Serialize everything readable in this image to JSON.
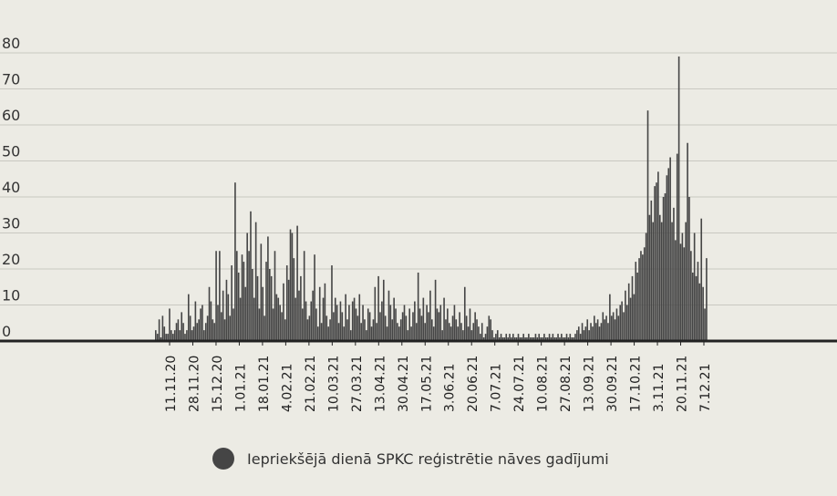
{
  "chart_data": {
    "type": "bar",
    "title": "",
    "xlabel": "",
    "ylabel": "",
    "ylim": [
      0,
      80
    ],
    "y_ticks": [
      0,
      10,
      20,
      30,
      40,
      50,
      60,
      70,
      80
    ],
    "x_tick_labels": [
      "11.11.20",
      "28.11.20",
      "15.12.20",
      "1.01.21",
      "18.01.21",
      "4.02.21",
      "21.02.21",
      "10.03.21",
      "27.03.21",
      "13.04.21",
      "30.04.21",
      "17.05.21",
      "3.06.21",
      "20.06.21",
      "7.07.21",
      "24.07.21",
      "10.08.21",
      "27.08.21",
      "13.09.21",
      "30.09.21",
      "17.10.21",
      "3.11.21",
      "20.11.21",
      "7.12.21"
    ],
    "grid": "horizontal",
    "legend_position": "bottom",
    "series": [
      {
        "name": "Iepriekšējā dienā SPKC reģistrētie nāves gadījumi",
        "color": "#454545",
        "values": [
          3,
          2,
          6,
          1,
          7,
          4,
          2,
          2,
          9,
          3,
          2,
          3,
          5,
          6,
          3,
          8,
          5,
          2,
          3,
          13,
          7,
          3,
          4,
          11,
          5,
          6,
          9,
          10,
          3,
          5,
          7,
          15,
          11,
          6,
          5,
          25,
          10,
          25,
          8,
          14,
          6,
          17,
          13,
          7,
          21,
          9,
          44,
          25,
          19,
          12,
          24,
          22,
          15,
          30,
          25,
          36,
          20,
          12,
          33,
          18,
          9,
          27,
          15,
          7,
          22,
          29,
          20,
          18,
          9,
          25,
          13,
          12,
          10,
          8,
          16,
          6,
          21,
          17,
          31,
          30,
          23,
          12,
          32,
          14,
          18,
          9,
          25,
          11,
          6,
          7,
          11,
          14,
          24,
          9,
          4,
          15,
          5,
          12,
          16,
          7,
          4,
          6,
          21,
          8,
          12,
          10,
          5,
          11,
          8,
          4,
          13,
          6,
          10,
          3,
          11,
          12,
          9,
          7,
          13,
          5,
          10,
          6,
          3,
          9,
          8,
          4,
          6,
          15,
          5,
          18,
          8,
          11,
          17,
          7,
          4,
          14,
          10,
          6,
          12,
          9,
          5,
          4,
          6,
          8,
          10,
          7,
          3,
          9,
          4,
          8,
          11,
          5,
          19,
          9,
          7,
          12,
          5,
          10,
          8,
          14,
          6,
          4,
          17,
          9,
          8,
          10,
          3,
          12,
          6,
          9,
          5,
          4,
          7,
          10,
          6,
          4,
          8,
          5,
          3,
          15,
          7,
          4,
          9,
          3,
          5,
          8,
          6,
          4,
          2,
          5,
          1,
          2,
          4,
          7,
          6,
          3,
          1,
          2,
          3,
          1,
          2,
          1,
          1,
          2,
          1,
          2,
          1,
          2,
          1,
          1,
          2,
          1,
          1,
          2,
          1,
          1,
          2,
          1,
          1,
          1,
          2,
          1,
          2,
          1,
          1,
          2,
          1,
          1,
          2,
          1,
          2,
          1,
          1,
          2,
          1,
          2,
          1,
          1,
          2,
          1,
          2,
          1,
          1,
          2,
          3,
          4,
          2,
          5,
          3,
          4,
          6,
          3,
          5,
          4,
          7,
          5,
          6,
          4,
          5,
          8,
          6,
          7,
          5,
          13,
          7,
          8,
          6,
          9,
          7,
          10,
          11,
          8,
          14,
          10,
          16,
          12,
          18,
          13,
          22,
          19,
          23,
          25,
          24,
          26,
          30,
          64,
          35,
          39,
          33,
          43,
          44,
          47,
          35,
          33,
          40,
          41,
          46,
          48,
          51,
          33,
          37,
          28,
          52,
          79,
          27,
          30,
          26,
          33,
          55,
          40,
          25,
          19,
          30,
          18,
          22,
          16,
          34,
          15,
          9,
          23
        ]
      }
    ]
  },
  "legend": {
    "label": "Iepriekšējā dienā SPKC reģistrētie nāves gadījumi"
  }
}
